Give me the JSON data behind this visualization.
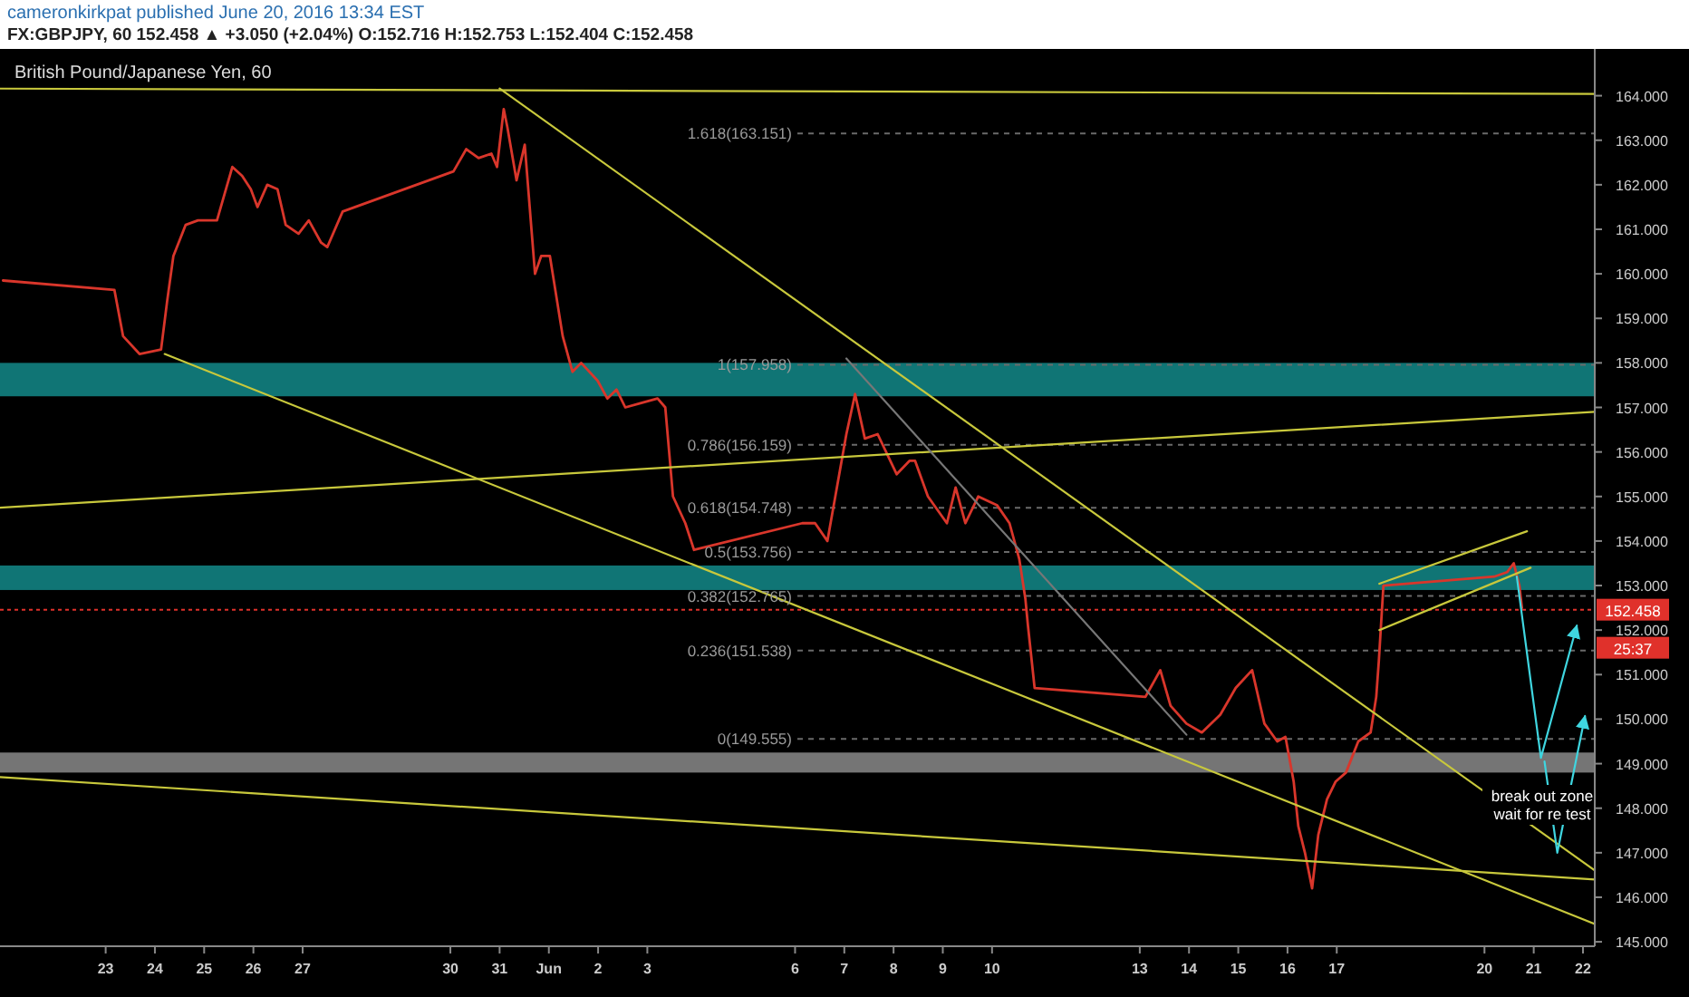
{
  "chart_data": {
    "type": "line",
    "title": "British Pound/Japanese Yen, 60",
    "subtitle": "FX:GBPJPY, 60 152.458 ▲ +3.050 (+2.04%) O:152.716 H:152.753 L:152.404 C:152.458",
    "annotations": [
      "cameronkirkpat published June 20, 2016 13:34 EST",
      "25:37",
      "break out zone wait for re test"
    ],
    "xlim": [
      "2016-05-20T20:30",
      "2016-06-22T05:45"
    ],
    "ylim": [
      144.9,
      165.05
    ],
    "xticks": [
      {
        "value": "2016-05-23",
        "label": "23"
      },
      {
        "value": "2016-05-24",
        "label": "24"
      },
      {
        "value": "2016-05-25",
        "label": "25"
      },
      {
        "value": "2016-05-26",
        "label": "26"
      },
      {
        "value": "2016-05-27",
        "label": "27"
      },
      {
        "value": "2016-05-30",
        "label": "30"
      },
      {
        "value": "2016-05-31",
        "label": "31"
      },
      {
        "value": "2016-06-01",
        "label": "Jun"
      },
      {
        "value": "2016-06-02",
        "label": "2"
      },
      {
        "value": "2016-06-03",
        "label": "3"
      },
      {
        "value": "2016-06-06",
        "label": "6"
      },
      {
        "value": "2016-06-07",
        "label": "7"
      },
      {
        "value": "2016-06-08",
        "label": "8"
      },
      {
        "value": "2016-06-09",
        "label": "9"
      },
      {
        "value": "2016-06-10",
        "label": "10"
      },
      {
        "value": "2016-06-13",
        "label": "13"
      },
      {
        "value": "2016-06-14",
        "label": "14"
      },
      {
        "value": "2016-06-15",
        "label": "15"
      },
      {
        "value": "2016-06-16",
        "label": "16"
      },
      {
        "value": "2016-06-17",
        "label": "17"
      },
      {
        "value": "2016-06-20",
        "label": "20"
      },
      {
        "value": "2016-06-21",
        "label": "21"
      },
      {
        "value": "2016-06-22",
        "label": "22"
      }
    ],
    "yticks": [
      {
        "value": 145,
        "label": "145.000"
      },
      {
        "value": 146,
        "label": "146.000"
      },
      {
        "value": 147,
        "label": "147.000"
      },
      {
        "value": 148,
        "label": "148.000"
      },
      {
        "value": 149,
        "label": "149.000"
      },
      {
        "value": 150,
        "label": "150.000"
      },
      {
        "value": 151,
        "label": "151.000"
      },
      {
        "value": 152,
        "label": "152.000"
      },
      {
        "value": 153,
        "label": "153.000"
      },
      {
        "value": 154,
        "label": "154.000"
      },
      {
        "value": 155,
        "label": "155.000"
      },
      {
        "value": 156,
        "label": "156.000"
      },
      {
        "value": 157,
        "label": "157.000"
      },
      {
        "value": 158,
        "label": "158.000"
      },
      {
        "value": 159,
        "label": "159.000"
      },
      {
        "value": 160,
        "label": "160.000"
      },
      {
        "value": 161,
        "label": "161.000"
      },
      {
        "value": 162,
        "label": "162.000"
      },
      {
        "value": 163,
        "label": "163.000"
      },
      {
        "value": 164,
        "label": "164.000"
      }
    ],
    "grid": false,
    "marker": "none",
    "bands": [
      {
        "axis": "y",
        "from": 157.25,
        "to": 158.0,
        "color": "#138a8a"
      },
      {
        "axis": "y",
        "from": 152.9,
        "to": 153.45,
        "color": "#138a8a"
      },
      {
        "axis": "y",
        "from": 148.8,
        "to": 149.25,
        "color": "#8a8a8a"
      }
    ],
    "ref_lines": [
      {
        "axis": "y",
        "value": 163.151,
        "label": "1.618(163.151)",
        "color": "#6a6a6a",
        "line_style": "dashed"
      },
      {
        "axis": "y",
        "value": 157.958,
        "label": "1(157.958)",
        "color": "#6a6a6a",
        "line_style": "dashed"
      },
      {
        "axis": "y",
        "value": 156.159,
        "label": "0.786(156.159)",
        "color": "#6a6a6a",
        "line_style": "dashed"
      },
      {
        "axis": "y",
        "value": 154.748,
        "label": "0.618(154.748)",
        "color": "#6a6a6a",
        "line_style": "dashed"
      },
      {
        "axis": "y",
        "value": 153.756,
        "label": "0.5(153.756)",
        "color": "#6a6a6a",
        "line_style": "dashed"
      },
      {
        "axis": "y",
        "value": 152.765,
        "label": "0.382(152.765)",
        "color": "#6a6a6a",
        "line_style": "dashed"
      },
      {
        "axis": "y",
        "value": 151.538,
        "label": "0.236(151.538)",
        "color": "#6a6a6a",
        "line_style": "dashed"
      },
      {
        "axis": "y",
        "value": 149.555,
        "label": "0(149.555)",
        "color": "#6a6a6a",
        "line_style": "dashed"
      },
      {
        "axis": "y",
        "value": 152.458,
        "label": "152.458",
        "color": "#e0312b",
        "line_style": "dotted"
      }
    ],
    "series": [
      {
        "color": "#d9362b",
        "x": [
          "2016-05-20T22:00",
          "2016-05-23T04:15",
          "2016-05-23T08:30",
          "2016-05-23T16:30",
          "2016-05-24T03:00",
          "2016-05-24T06:00",
          "2016-05-24T09:00",
          "2016-05-24T15:00",
          "2016-05-24T21:00",
          "2016-05-25T06:15",
          "2016-05-25T13:45",
          "2016-05-25T18:30",
          "2016-05-25T22:45",
          "2016-05-26T02:00",
          "2016-05-26T06:45",
          "2016-05-26T11:45",
          "2016-05-26T15:45",
          "2016-05-26T22:00",
          "2016-05-27T03:00",
          "2016-05-27T09:00",
          "2016-05-27T12:00",
          "2016-05-27T19:30",
          "2016-05-30T01:30",
          "2016-05-30T07:45",
          "2016-05-30T13:45",
          "2016-05-30T20:00",
          "2016-05-30T22:45",
          "2016-05-31T02:00",
          "2016-05-31T03:45",
          "2016-05-31T08:15",
          "2016-05-31T12:15",
          "2016-05-31T17:15",
          "2016-05-31T20:15",
          "2016-06-01T00:30",
          "2016-06-01T06:45",
          "2016-06-01T11:30",
          "2016-06-01T15:45",
          "2016-06-01T23:45",
          "2016-06-02T04:30",
          "2016-06-02T09:00",
          "2016-06-02T13:15",
          "2016-06-02T21:00",
          "2016-06-03T05:00",
          "2016-06-03T08:45",
          "2016-06-03T12:30",
          "2016-06-03T18:30",
          "2016-06-03T22:45",
          "2016-06-06T03:30",
          "2016-06-06T09:45",
          "2016-06-06T15:45",
          "2016-06-07T01:00",
          "2016-06-07T05:15",
          "2016-06-07T10:00",
          "2016-06-07T16:15",
          "2016-06-08T01:30",
          "2016-06-08T07:45",
          "2016-06-08T10:30",
          "2016-06-08T16:45",
          "2016-06-09T02:00",
          "2016-06-09T06:15",
          "2016-06-09T11:00",
          "2016-06-09T17:15",
          "2016-06-10T02:30",
          "2016-06-10T08:30",
          "2016-06-10T13:15",
          "2016-06-10T16:15",
          "2016-06-10T17:30",
          "2016-06-10T20:45",
          "2016-06-13T02:45",
          "2016-06-13T10:00",
          "2016-06-13T15:00",
          "2016-06-13T22:45",
          "2016-06-14T06:15",
          "2016-06-14T15:15",
          "2016-06-14T22:45",
          "2016-06-15T06:45",
          "2016-06-15T12:45",
          "2016-06-15T19:00",
          "2016-06-15T23:00",
          "2016-06-16T03:00",
          "2016-06-16T05:15",
          "2016-06-16T08:30",
          "2016-06-16T12:00",
          "2016-06-16T15:00",
          "2016-06-16T19:15",
          "2016-06-16T23:30",
          "2016-06-17T04:30",
          "2016-06-17T10:30",
          "2016-06-17T16:30",
          "2016-06-17T19:15",
          "2016-06-17T20:30",
          "2016-06-17T22:45",
          "2016-06-20T04:45",
          "2016-06-20T11:00",
          "2016-06-20T14:15",
          "2016-06-20T17:00",
          "2016-06-20T18:15"
        ],
        "values": [
          159.85,
          159.64,
          158.6,
          158.2,
          158.3,
          159.4,
          160.4,
          161.1,
          161.2,
          161.2,
          162.4,
          162.2,
          161.9,
          161.5,
          162.0,
          161.9,
          161.1,
          160.9,
          161.2,
          160.7,
          160.6,
          161.4,
          162.3,
          162.8,
          162.6,
          162.7,
          162.4,
          163.7,
          163.3,
          162.1,
          162.9,
          160.0,
          160.4,
          160.4,
          158.6,
          157.8,
          158.0,
          157.6,
          157.2,
          157.4,
          157.0,
          157.1,
          157.2,
          157.0,
          155.0,
          154.4,
          153.8,
          154.4,
          154.4,
          154.0,
          156.4,
          157.3,
          156.3,
          156.4,
          155.5,
          155.8,
          155.8,
          155.0,
          154.4,
          155.2,
          154.4,
          155.0,
          154.8,
          154.4,
          153.6,
          152.7,
          152.1,
          150.7,
          150.5,
          151.1,
          150.3,
          149.9,
          149.7,
          150.1,
          150.7,
          151.1,
          149.9,
          149.5,
          149.6,
          148.6,
          147.6,
          147.0,
          146.2,
          147.4,
          148.2,
          148.6,
          148.8,
          149.5,
          149.7,
          150.5,
          151.3,
          153.0,
          153.2,
          153.3,
          153.5,
          153.0,
          152.5
        ]
      },
      {
        "color": "#c8c83c",
        "x": [
          "2016-05-20T20:30",
          "2016-06-22T05:45"
        ],
        "values": [
          164.16,
          164.04
        ]
      },
      {
        "color": "#c8c83c",
        "x": [
          "2016-05-31T00:00",
          "2016-06-22T05:45"
        ],
        "values": [
          164.16,
          146.6
        ]
      },
      {
        "color": "#c8c83c",
        "x": [
          "2016-05-24T04:45",
          "2016-06-22T05:45"
        ],
        "values": [
          158.2,
          145.4
        ]
      },
      {
        "color": "#c8c83c",
        "x": [
          "2016-05-20T20:30",
          "2016-06-22T05:45"
        ],
        "values": [
          148.7,
          146.4
        ]
      },
      {
        "color": "#c8c83c",
        "x": [
          "2016-05-20T20:30",
          "2016-06-22T05:45"
        ],
        "values": [
          154.75,
          156.9
        ]
      },
      {
        "color": "#777777",
        "x": [
          "2016-06-07T01:00",
          "2016-06-13T22:45"
        ],
        "values": [
          158.1,
          149.65
        ]
      },
      {
        "color": "#c8c83c",
        "x": [
          "2016-06-17T20:45",
          "2016-06-20T20:45"
        ],
        "values": [
          153.04,
          154.22
        ]
      },
      {
        "color": "#c8c83c",
        "x": [
          "2016-06-17T20:45",
          "2016-06-20T22:30"
        ],
        "values": [
          152.0,
          153.4
        ]
      },
      {
        "color": "#3fd6e0",
        "x": [
          "2016-06-20T15:45",
          "2016-06-21T03:30",
          "2016-06-21T21:00"
        ],
        "values": [
          153.2,
          149.13,
          152.1
        ]
      },
      {
        "color": "#3fd6e0",
        "x": [
          "2016-06-21T05:15",
          "2016-06-21T11:30",
          "2016-06-22T01:00"
        ],
        "values": [
          149.05,
          147.0,
          150.07
        ]
      }
    ]
  }
}
